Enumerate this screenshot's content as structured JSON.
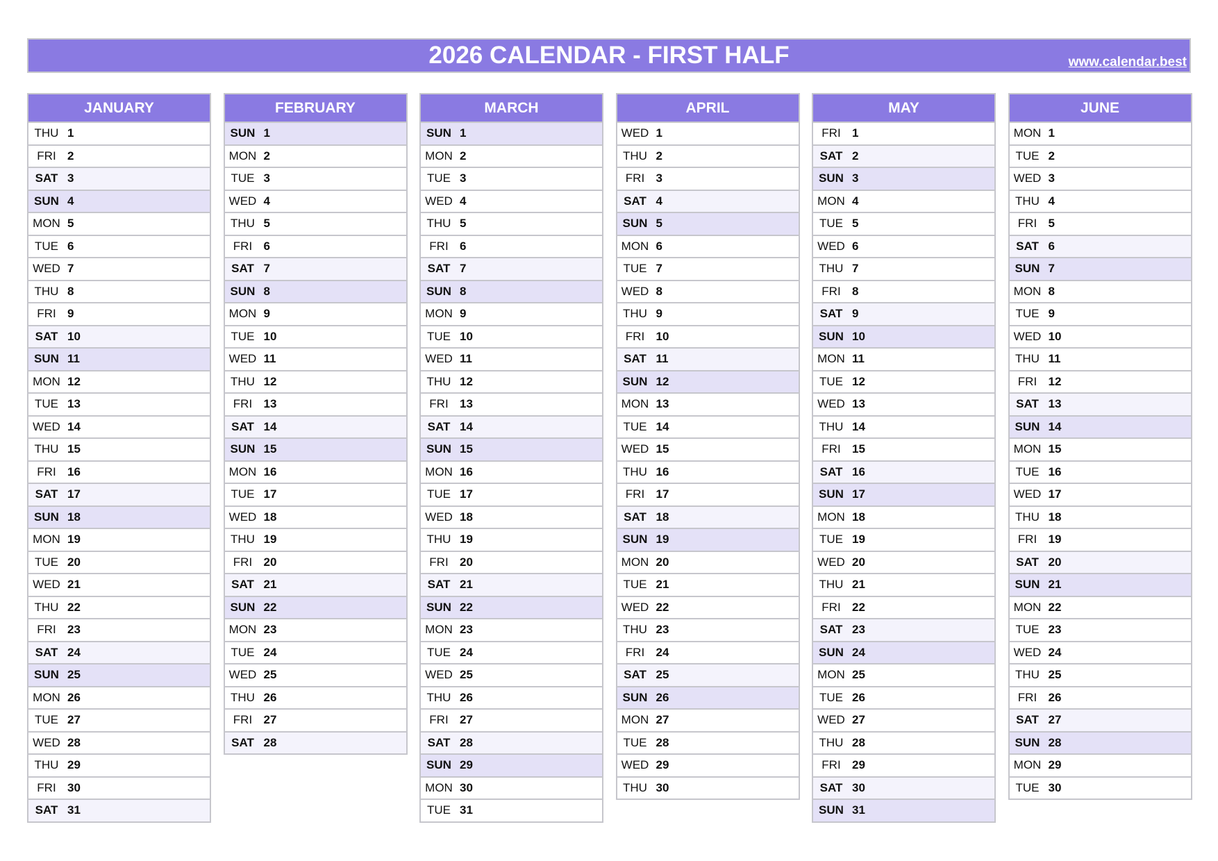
{
  "header": {
    "title": "2026 CALENDAR - FIRST HALF",
    "site": "www.calendar.best"
  },
  "colors": {
    "header": "#8a7ae2",
    "saturday": "#f4f3fc",
    "sunday": "#e4e1f7",
    "border": "#c6c6cc"
  },
  "months": [
    {
      "name": "JANUARY",
      "rows": [
        [
          "THU",
          "1"
        ],
        [
          "FRI",
          "2"
        ],
        [
          "SAT",
          "3"
        ],
        [
          "SUN",
          "4"
        ],
        [
          "MON",
          "5"
        ],
        [
          "TUE",
          "6"
        ],
        [
          "WED",
          "7"
        ],
        [
          "THU",
          "8"
        ],
        [
          "FRI",
          "9"
        ],
        [
          "SAT",
          "10"
        ],
        [
          "SUN",
          "11"
        ],
        [
          "MON",
          "12"
        ],
        [
          "TUE",
          "13"
        ],
        [
          "WED",
          "14"
        ],
        [
          "THU",
          "15"
        ],
        [
          "FRI",
          "16"
        ],
        [
          "SAT",
          "17"
        ],
        [
          "SUN",
          "18"
        ],
        [
          "MON",
          "19"
        ],
        [
          "TUE",
          "20"
        ],
        [
          "WED",
          "21"
        ],
        [
          "THU",
          "22"
        ],
        [
          "FRI",
          "23"
        ],
        [
          "SAT",
          "24"
        ],
        [
          "SUN",
          "25"
        ],
        [
          "MON",
          "26"
        ],
        [
          "TUE",
          "27"
        ],
        [
          "WED",
          "28"
        ],
        [
          "THU",
          "29"
        ],
        [
          "FRI",
          "30"
        ],
        [
          "SAT",
          "31"
        ]
      ]
    },
    {
      "name": "FEBRUARY",
      "rows": [
        [
          "SUN",
          "1"
        ],
        [
          "MON",
          "2"
        ],
        [
          "TUE",
          "3"
        ],
        [
          "WED",
          "4"
        ],
        [
          "THU",
          "5"
        ],
        [
          "FRI",
          "6"
        ],
        [
          "SAT",
          "7"
        ],
        [
          "SUN",
          "8"
        ],
        [
          "MON",
          "9"
        ],
        [
          "TUE",
          "10"
        ],
        [
          "WED",
          "11"
        ],
        [
          "THU",
          "12"
        ],
        [
          "FRI",
          "13"
        ],
        [
          "SAT",
          "14"
        ],
        [
          "SUN",
          "15"
        ],
        [
          "MON",
          "16"
        ],
        [
          "TUE",
          "17"
        ],
        [
          "WED",
          "18"
        ],
        [
          "THU",
          "19"
        ],
        [
          "FRI",
          "20"
        ],
        [
          "SAT",
          "21"
        ],
        [
          "SUN",
          "22"
        ],
        [
          "MON",
          "23"
        ],
        [
          "TUE",
          "24"
        ],
        [
          "WED",
          "25"
        ],
        [
          "THU",
          "26"
        ],
        [
          "FRI",
          "27"
        ],
        [
          "SAT",
          "28"
        ]
      ]
    },
    {
      "name": "MARCH",
      "rows": [
        [
          "SUN",
          "1"
        ],
        [
          "MON",
          "2"
        ],
        [
          "TUE",
          "3"
        ],
        [
          "WED",
          "4"
        ],
        [
          "THU",
          "5"
        ],
        [
          "FRI",
          "6"
        ],
        [
          "SAT",
          "7"
        ],
        [
          "SUN",
          "8"
        ],
        [
          "MON",
          "9"
        ],
        [
          "TUE",
          "10"
        ],
        [
          "WED",
          "11"
        ],
        [
          "THU",
          "12"
        ],
        [
          "FRI",
          "13"
        ],
        [
          "SAT",
          "14"
        ],
        [
          "SUN",
          "15"
        ],
        [
          "MON",
          "16"
        ],
        [
          "TUE",
          "17"
        ],
        [
          "WED",
          "18"
        ],
        [
          "THU",
          "19"
        ],
        [
          "FRI",
          "20"
        ],
        [
          "SAT",
          "21"
        ],
        [
          "SUN",
          "22"
        ],
        [
          "MON",
          "23"
        ],
        [
          "TUE",
          "24"
        ],
        [
          "WED",
          "25"
        ],
        [
          "THU",
          "26"
        ],
        [
          "FRI",
          "27"
        ],
        [
          "SAT",
          "28"
        ],
        [
          "SUN",
          "29"
        ],
        [
          "MON",
          "30"
        ],
        [
          "TUE",
          "31"
        ]
      ]
    },
    {
      "name": "APRIL",
      "rows": [
        [
          "WED",
          "1"
        ],
        [
          "THU",
          "2"
        ],
        [
          "FRI",
          "3"
        ],
        [
          "SAT",
          "4"
        ],
        [
          "SUN",
          "5"
        ],
        [
          "MON",
          "6"
        ],
        [
          "TUE",
          "7"
        ],
        [
          "WED",
          "8"
        ],
        [
          "THU",
          "9"
        ],
        [
          "FRI",
          "10"
        ],
        [
          "SAT",
          "11"
        ],
        [
          "SUN",
          "12"
        ],
        [
          "MON",
          "13"
        ],
        [
          "TUE",
          "14"
        ],
        [
          "WED",
          "15"
        ],
        [
          "THU",
          "16"
        ],
        [
          "FRI",
          "17"
        ],
        [
          "SAT",
          "18"
        ],
        [
          "SUN",
          "19"
        ],
        [
          "MON",
          "20"
        ],
        [
          "TUE",
          "21"
        ],
        [
          "WED",
          "22"
        ],
        [
          "THU",
          "23"
        ],
        [
          "FRI",
          "24"
        ],
        [
          "SAT",
          "25"
        ],
        [
          "SUN",
          "26"
        ],
        [
          "MON",
          "27"
        ],
        [
          "TUE",
          "28"
        ],
        [
          "WED",
          "29"
        ],
        [
          "THU",
          "30"
        ]
      ]
    },
    {
      "name": "MAY",
      "rows": [
        [
          "FRI",
          "1"
        ],
        [
          "SAT",
          "2"
        ],
        [
          "SUN",
          "3"
        ],
        [
          "MON",
          "4"
        ],
        [
          "TUE",
          "5"
        ],
        [
          "WED",
          "6"
        ],
        [
          "THU",
          "7"
        ],
        [
          "FRI",
          "8"
        ],
        [
          "SAT",
          "9"
        ],
        [
          "SUN",
          "10"
        ],
        [
          "MON",
          "11"
        ],
        [
          "TUE",
          "12"
        ],
        [
          "WED",
          "13"
        ],
        [
          "THU",
          "14"
        ],
        [
          "FRI",
          "15"
        ],
        [
          "SAT",
          "16"
        ],
        [
          "SUN",
          "17"
        ],
        [
          "MON",
          "18"
        ],
        [
          "TUE",
          "19"
        ],
        [
          "WED",
          "20"
        ],
        [
          "THU",
          "21"
        ],
        [
          "FRI",
          "22"
        ],
        [
          "SAT",
          "23"
        ],
        [
          "SUN",
          "24"
        ],
        [
          "MON",
          "25"
        ],
        [
          "TUE",
          "26"
        ],
        [
          "WED",
          "27"
        ],
        [
          "THU",
          "28"
        ],
        [
          "FRI",
          "29"
        ],
        [
          "SAT",
          "30"
        ],
        [
          "SUN",
          "31"
        ]
      ]
    },
    {
      "name": "JUNE",
      "rows": [
        [
          "MON",
          "1"
        ],
        [
          "TUE",
          "2"
        ],
        [
          "WED",
          "3"
        ],
        [
          "THU",
          "4"
        ],
        [
          "FRI",
          "5"
        ],
        [
          "SAT",
          "6"
        ],
        [
          "SUN",
          "7"
        ],
        [
          "MON",
          "8"
        ],
        [
          "TUE",
          "9"
        ],
        [
          "WED",
          "10"
        ],
        [
          "THU",
          "11"
        ],
        [
          "FRI",
          "12"
        ],
        [
          "SAT",
          "13"
        ],
        [
          "SUN",
          "14"
        ],
        [
          "MON",
          "15"
        ],
        [
          "TUE",
          "16"
        ],
        [
          "WED",
          "17"
        ],
        [
          "THU",
          "18"
        ],
        [
          "FRI",
          "19"
        ],
        [
          "SAT",
          "20"
        ],
        [
          "SUN",
          "21"
        ],
        [
          "MON",
          "22"
        ],
        [
          "TUE",
          "23"
        ],
        [
          "WED",
          "24"
        ],
        [
          "THU",
          "25"
        ],
        [
          "FRI",
          "26"
        ],
        [
          "SAT",
          "27"
        ],
        [
          "SUN",
          "28"
        ],
        [
          "MON",
          "29"
        ],
        [
          "TUE",
          "30"
        ]
      ]
    }
  ]
}
